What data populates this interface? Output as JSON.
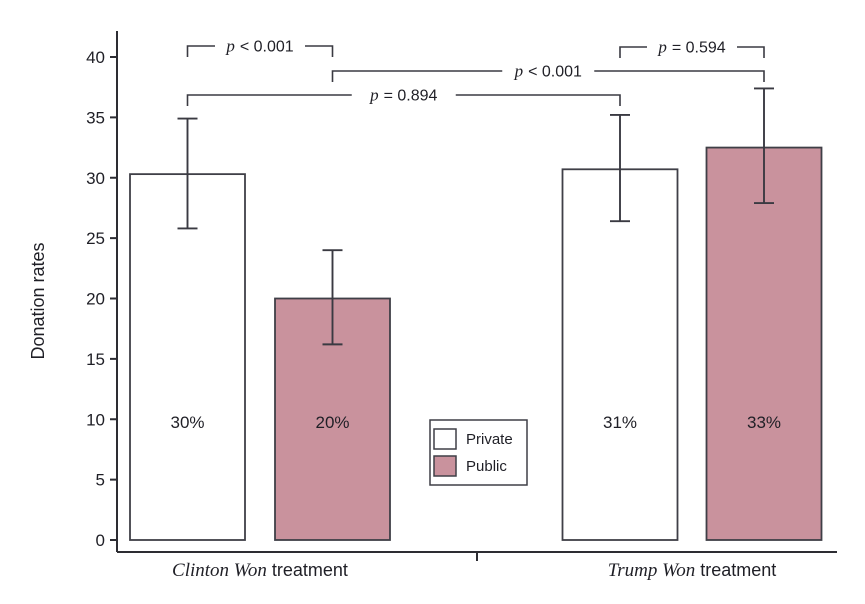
{
  "chart_data": {
    "type": "bar",
    "title": "",
    "ylabel": "Donation rates",
    "xlabel": "",
    "ylim": [
      0,
      40
    ],
    "yticks": [
      0,
      5,
      10,
      15,
      20,
      25,
      30,
      35,
      40
    ],
    "grid": false,
    "legend_position": "inside-bottom-center",
    "series": [
      "Private",
      "Public"
    ],
    "groups": [
      {
        "label": "Clinton Won treatment",
        "label_italic": "Clinton Won",
        "label_regular": "treatment",
        "bars": [
          {
            "id": "clinton-private",
            "series": "Private",
            "label": "30%",
            "value": 30.3,
            "ci_low": 25.8,
            "ci_high": 34.9
          },
          {
            "id": "clinton-public",
            "series": "Public",
            "label": "20%",
            "value": 20.0,
            "ci_low": 16.2,
            "ci_high": 24.0
          }
        ]
      },
      {
        "label": "Trump Won treatment",
        "label_italic": "Trump Won",
        "label_regular": "treatment",
        "bars": [
          {
            "id": "trump-private",
            "series": "Private",
            "label": "31%",
            "value": 30.7,
            "ci_low": 26.4,
            "ci_high": 35.2
          },
          {
            "id": "trump-public",
            "series": "Public",
            "label": "33%",
            "value": 32.5,
            "ci_low": 27.9,
            "ci_high": 37.4
          }
        ]
      }
    ],
    "legend": {
      "items": [
        {
          "label": "Private",
          "color": "#ffffff"
        },
        {
          "label": "Public",
          "color": "#c9929d"
        }
      ]
    },
    "comparisons": [
      {
        "label": "p < 0.001",
        "p_symbol": "p",
        "text": "< 0.001",
        "between": [
          "clinton-private",
          "clinton-public"
        ]
      },
      {
        "label": "p = 0.594",
        "p_symbol": "p",
        "text": "= 0.594",
        "between": [
          "trump-private",
          "trump-public"
        ]
      },
      {
        "label": "p < 0.001",
        "p_symbol": "p",
        "text": "< 0.001",
        "between": [
          "clinton-public",
          "trump-public"
        ]
      },
      {
        "label": "p = 0.894",
        "p_symbol": "p",
        "text": "= 0.894",
        "between": [
          "clinton-private",
          "trump-private"
        ]
      }
    ],
    "colors": {
      "private_fill": "#ffffff",
      "public_fill": "#c9929d",
      "bar_border": "#3f3f47",
      "error_bar": "#3a3a42",
      "axis": "#2d2d33",
      "text": "#1f1f26"
    }
  }
}
